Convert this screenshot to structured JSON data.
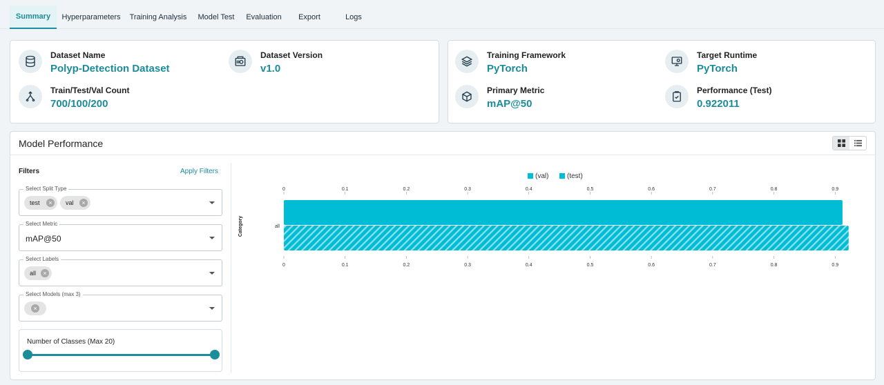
{
  "tabs": [
    "Summary",
    "Hyperparameters",
    "Training Analysis",
    "Model Test",
    "Evaluation",
    "Export",
    "Logs"
  ],
  "dataset": {
    "name_label": "Dataset Name",
    "name": "Polyp-Detection Dataset",
    "version_label": "Dataset Version",
    "version": "v1.0",
    "count_label": "Train/Test/Val Count",
    "count": "700/100/200"
  },
  "training": {
    "framework_label": "Training Framework",
    "framework": "PyTorch",
    "runtime_label": "Target Runtime",
    "runtime": "PyTorch",
    "metric_label": "Primary Metric",
    "metric": "mAP@50",
    "performance_label": "Performance (Test)",
    "performance": "0.922011"
  },
  "icons": {
    "dataset_name": "database-icon",
    "dataset_version": "archive-box-icon",
    "count": "split-arrows-icon",
    "framework": "layers-icon",
    "runtime": "monitor-icon",
    "metric": "cube-icon",
    "performance": "clipboard-check-icon"
  },
  "performance": {
    "title": "Model Performance",
    "view_grid": "grid-view-icon",
    "view_list": "list-view-icon"
  },
  "filters": {
    "title": "Filters",
    "apply": "Apply Filters",
    "split_type": {
      "label": "Select Split Type",
      "chips": [
        "test",
        "val"
      ]
    },
    "metric": {
      "label": "Select Metric",
      "value": "mAP@50"
    },
    "labels": {
      "label": "Select Labels",
      "chips": [
        "all"
      ]
    },
    "models": {
      "label": "Select Models (max 3)"
    },
    "classes": {
      "label": "Number of Classes (Max 20)",
      "min": 1,
      "max": 20,
      "range": [
        1,
        20
      ]
    }
  },
  "colors": {
    "accent": "#1b8c99",
    "bar": "#00bcd4"
  },
  "chart_data": {
    "type": "bar",
    "orientation": "horizontal",
    "categories": [
      "all"
    ],
    "series": [
      {
        "name": "(val)",
        "values": [
          0.912
        ],
        "pattern": "solid"
      },
      {
        "name": "(test)",
        "values": [
          0.922
        ],
        "pattern": "hatched"
      }
    ],
    "ylabel": "Category",
    "xticks": [
      "0",
      "0.1",
      "0.2",
      "0.3",
      "0.4",
      "0.5",
      "0.6",
      "0.7",
      "0.8",
      "0.9"
    ],
    "xlim": [
      0,
      0.92
    ],
    "legend": "top-center"
  }
}
